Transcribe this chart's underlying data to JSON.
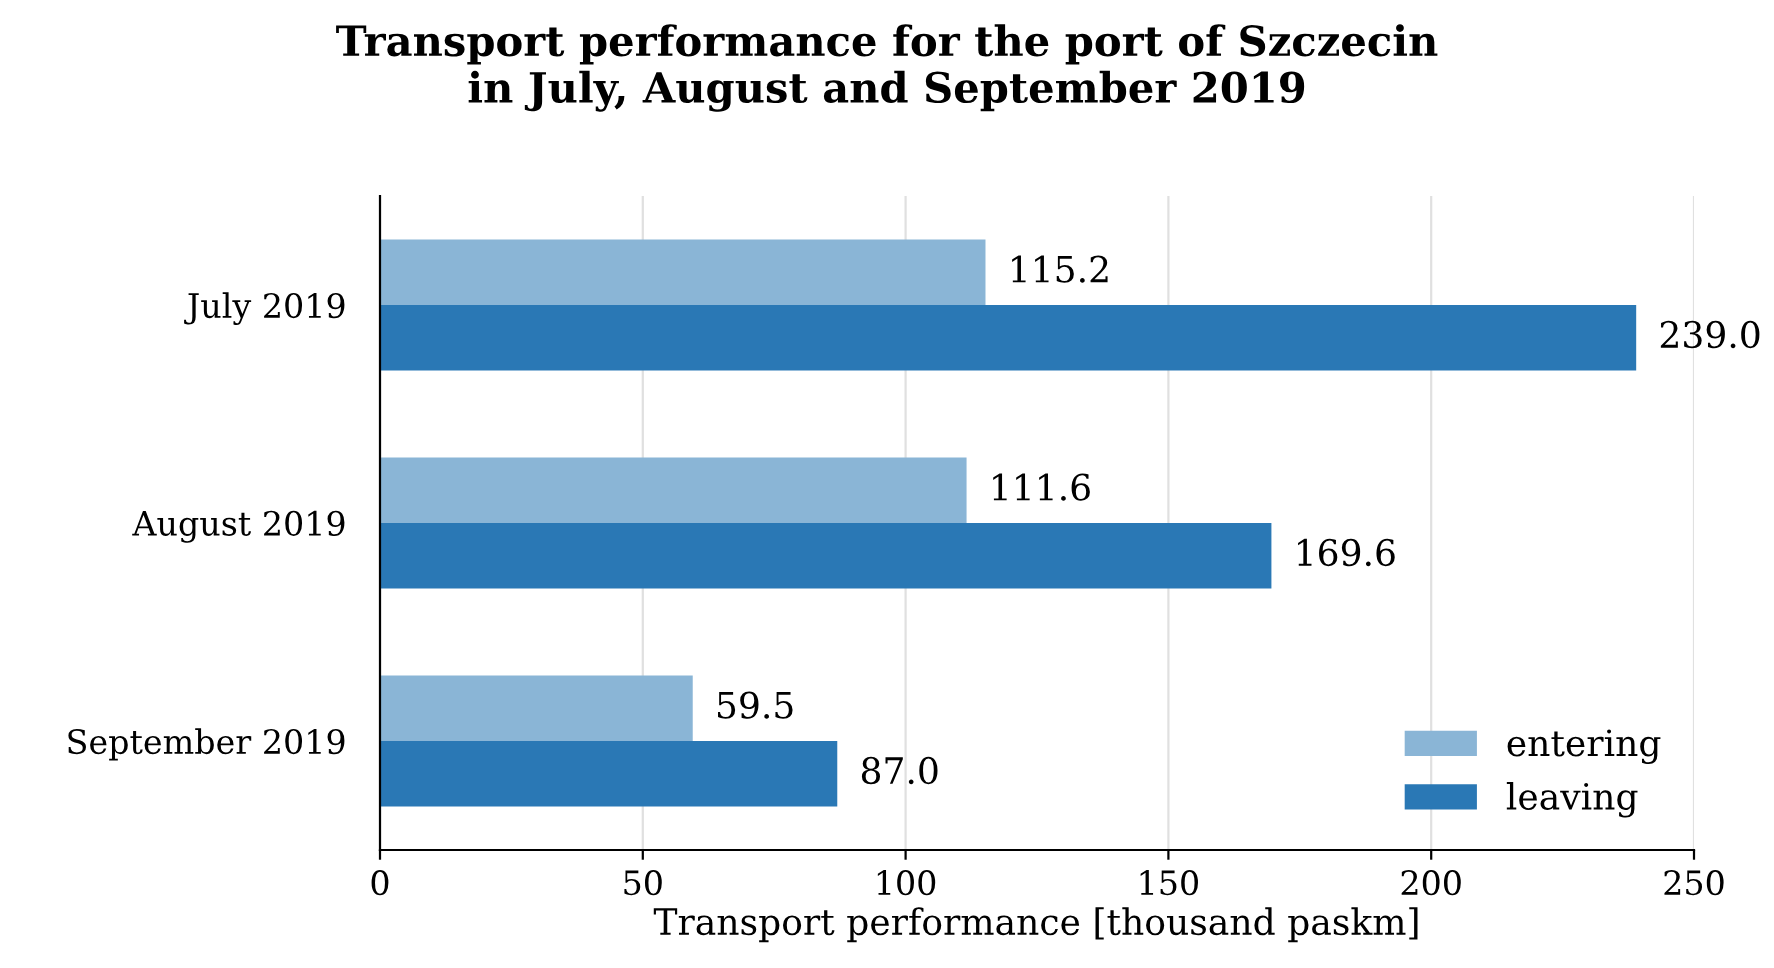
{
  "chart_data": {
    "type": "bar",
    "orientation": "horizontal",
    "title": "Transport performance for the port of Szczecin\nin July, August and September 2019",
    "xlabel": "Transport performance [thousand paskm]",
    "categories": [
      "July 2019",
      "August 2019",
      "September 2019"
    ],
    "series": [
      {
        "name": "entering",
        "color": "#8ab5d6",
        "values": [
          115.2,
          111.6,
          59.5
        ],
        "value_labels": [
          "115.2",
          "111.6",
          "59.5"
        ]
      },
      {
        "name": "leaving",
        "color": "#2a78b5",
        "values": [
          239.0,
          169.6,
          87.0
        ],
        "value_labels": [
          "239.0",
          "169.6",
          "87.0"
        ]
      }
    ],
    "xlim": [
      0,
      250
    ],
    "xticks": [
      0,
      50,
      100,
      150,
      200,
      250
    ],
    "grid": "x",
    "legend": "bottom right"
  }
}
